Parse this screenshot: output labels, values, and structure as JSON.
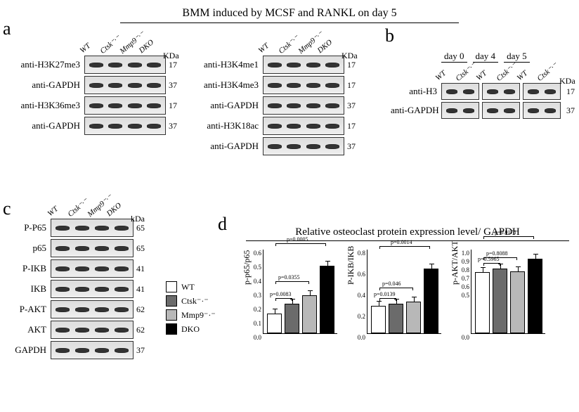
{
  "title": "BMM induced by MCSF  and RANKL  on day 5",
  "panels": {
    "a": "a",
    "b": "b",
    "c": "c",
    "d": "d"
  },
  "genotypes": [
    "WT",
    "Ctsk⁻·⁻",
    "Mmp9⁻·⁻",
    "DKO"
  ],
  "genotypes2": [
    "WT",
    "Ctsk⁻·⁻"
  ],
  "kda_header": "KDa",
  "kda_header_b": "KDa",
  "kda_header_c": "kDa",
  "panel_a_left": [
    {
      "label": "anti-H3K27me3",
      "mw": "17"
    },
    {
      "label": "anti-GAPDH",
      "mw": "37"
    },
    {
      "label": "anti-H3K36me3",
      "mw": "17"
    },
    {
      "label": "anti-GAPDH",
      "mw": "37"
    }
  ],
  "panel_a_right": [
    {
      "label": "anti-H3K4me1",
      "mw": "17"
    },
    {
      "label": "anti-H3K4me3",
      "mw": "17"
    },
    {
      "label": "anti-GAPDH",
      "mw": "37"
    },
    {
      "label": "anti-H3K18ac",
      "mw": "17"
    },
    {
      "label": "anti-GAPDH",
      "mw": "37"
    }
  ],
  "panel_b_days": [
    "day 0",
    "day 4",
    "day 5"
  ],
  "panel_b_rows": [
    {
      "label": "anti-H3",
      "mw": "17"
    },
    {
      "label": "anti-GAPDH",
      "mw": "37"
    }
  ],
  "panel_c": [
    {
      "label": "P-P65",
      "mw": "65"
    },
    {
      "label": "p65",
      "mw": "65"
    },
    {
      "label": "P-IKB",
      "mw": "41"
    },
    {
      "label": "IKB",
      "mw": "41"
    },
    {
      "label": "P-AKT",
      "mw": "62"
    },
    {
      "label": "AKT",
      "mw": "62"
    },
    {
      "label": "GAPDH",
      "mw": "37"
    }
  ],
  "legend": [
    {
      "label": "WT",
      "color": "#ffffff"
    },
    {
      "label": "Ctsk⁻·⁻",
      "color": "#6b6b6b"
    },
    {
      "label": "Mmp9⁻·⁻",
      "color": "#b8b8b8"
    },
    {
      "label": "DKO",
      "color": "#000000"
    }
  ],
  "charts_title": "Relative osteoclast protein  expression level/ GAPDH",
  "chart_colors": [
    "#ffffff",
    "#6b6b6b",
    "#b8b8b8",
    "#000000"
  ],
  "chart1": {
    "ylabel": "p-p65/p65",
    "ymax": 0.6,
    "yticks": [
      0.0,
      0.1,
      0.2,
      0.3,
      0.4,
      0.5,
      0.6
    ],
    "values": [
      0.13,
      0.2,
      0.26,
      0.47
    ],
    "err": [
      0.01,
      0.01,
      0.02,
      0.03
    ],
    "pvals": [
      {
        "text": "p=0.0083",
        "span": [
          0,
          1
        ]
      },
      {
        "text": "p=0.0355",
        "span": [
          0,
          2
        ]
      },
      {
        "text": "p=0.0005",
        "span": [
          0,
          3
        ]
      }
    ]
  },
  "chart2": {
    "ylabel": "P-IKB/IKB",
    "ymax": 0.8,
    "yticks": [
      0.0,
      0.2,
      0.4,
      0.6,
      0.8
    ],
    "values": [
      0.25,
      0.27,
      0.29,
      0.6
    ],
    "err": [
      0.01,
      0.01,
      0.01,
      0.01
    ],
    "pvals": [
      {
        "text": "p=0.0139",
        "span": [
          0,
          1
        ]
      },
      {
        "text": "p=0.046",
        "span": [
          0,
          2
        ]
      },
      {
        "text": "p=0.0014",
        "span": [
          0,
          3
        ]
      }
    ]
  },
  "chart3": {
    "ylabel": "p-AKT/AKT",
    "ymax": 1.0,
    "yticks": [
      0.0,
      0.5,
      0.6,
      0.7,
      0.8,
      0.9,
      1.0
    ],
    "values": [
      0.71,
      0.75,
      0.72,
      0.87
    ],
    "err": [
      0.08,
      0.04,
      0.06,
      0.04
    ],
    "pvals": [
      {
        "text": "p=0.5965",
        "span": [
          0,
          1
        ]
      },
      {
        "text": "p=0.8088",
        "span": [
          0,
          2
        ]
      },
      {
        "text": "p=0.0178",
        "span": [
          0,
          3
        ]
      }
    ]
  }
}
